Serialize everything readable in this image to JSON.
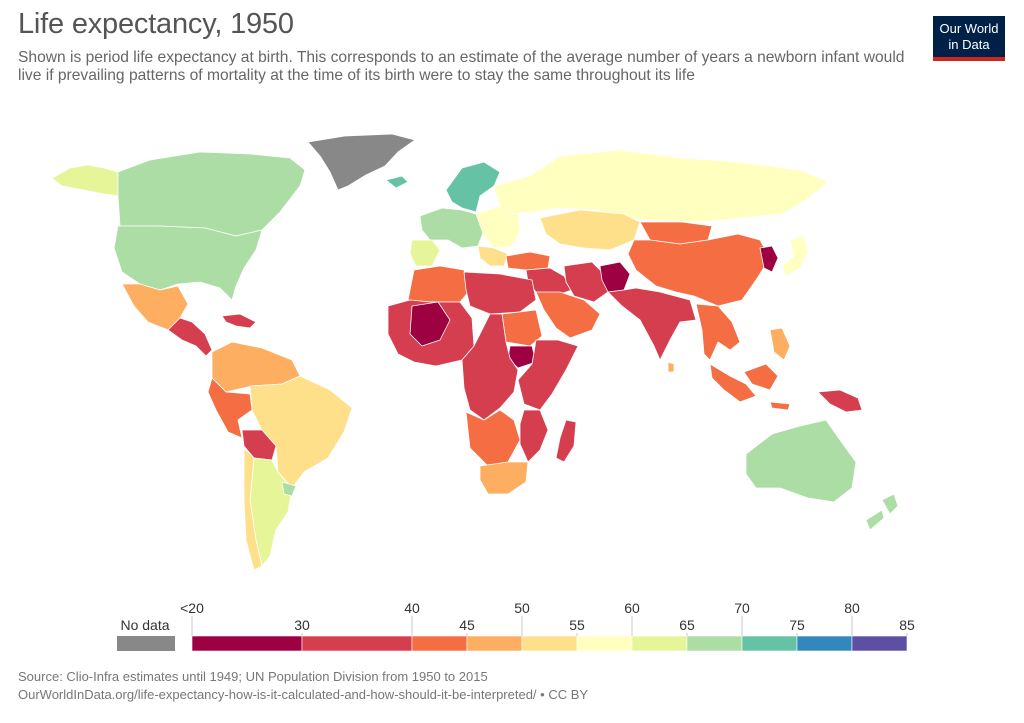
{
  "header": {
    "title": "Life expectancy, 1950",
    "subtitle": "Shown is period life expectancy at birth. This corresponds to an estimate of the average number of years a newborn infant would live if prevailing patterns of mortality at the time of its birth were to stay the same throughout its life",
    "logo_line1": "Our World",
    "logo_line2": "in Data"
  },
  "colors": {
    "brand_navy": "#002147",
    "brand_red": "#ce261e",
    "no_data": "#888888"
  },
  "legend": {
    "no_data_label": "No data",
    "bins": [
      {
        "from": 0,
        "to": 30,
        "color": "#9e0142"
      },
      {
        "from": 30,
        "to": 40,
        "color": "#d53e4f"
      },
      {
        "from": 40,
        "to": 45,
        "color": "#f46d43"
      },
      {
        "from": 45,
        "to": 50,
        "color": "#fdae61"
      },
      {
        "from": 50,
        "to": 55,
        "color": "#fee08b"
      },
      {
        "from": 55,
        "to": 60,
        "color": "#ffffbf"
      },
      {
        "from": 60,
        "to": 65,
        "color": "#e6f598"
      },
      {
        "from": 65,
        "to": 70,
        "color": "#abdda4"
      },
      {
        "from": 70,
        "to": 75,
        "color": "#66c2a5"
      },
      {
        "from": 75,
        "to": 80,
        "color": "#3288bd"
      },
      {
        "from": 80,
        "to": 85,
        "color": "#5e4fa2"
      }
    ],
    "ticks_top": [
      "<20",
      "40",
      "50",
      "60",
      "70",
      "80"
    ],
    "ticks_bottom": [
      "30",
      "45",
      "55",
      "65",
      "75",
      "85"
    ]
  },
  "regions": [
    {
      "name": "greenland",
      "bin": -1
    },
    {
      "name": "alaska",
      "bin": 6
    },
    {
      "name": "canada",
      "bin": 7
    },
    {
      "name": "usa",
      "bin": 7
    },
    {
      "name": "mexico",
      "bin": 3
    },
    {
      "name": "central-america",
      "bin": 1
    },
    {
      "name": "caribbean",
      "bin": 1
    },
    {
      "name": "northern-south-america",
      "bin": 3
    },
    {
      "name": "brazil",
      "bin": 4
    },
    {
      "name": "peru",
      "bin": 2
    },
    {
      "name": "bolivia",
      "bin": 1
    },
    {
      "name": "argentina",
      "bin": 6
    },
    {
      "name": "chile",
      "bin": 4
    },
    {
      "name": "uruguay",
      "bin": 7
    },
    {
      "name": "iceland",
      "bin": 8
    },
    {
      "name": "scandinavia",
      "bin": 8
    },
    {
      "name": "western-europe",
      "bin": 7
    },
    {
      "name": "eastern-europe",
      "bin": 5
    },
    {
      "name": "iberia",
      "bin": 6
    },
    {
      "name": "balkans",
      "bin": 4
    },
    {
      "name": "russia",
      "bin": 5
    },
    {
      "name": "kazakhstan",
      "bin": 4
    },
    {
      "name": "mongolia",
      "bin": 2
    },
    {
      "name": "china",
      "bin": 2
    },
    {
      "name": "korea",
      "bin": 0
    },
    {
      "name": "japan",
      "bin": 5
    },
    {
      "name": "turkey",
      "bin": 2
    },
    {
      "name": "middle-east",
      "bin": 1
    },
    {
      "name": "arabia",
      "bin": 2
    },
    {
      "name": "iran",
      "bin": 1
    },
    {
      "name": "afghanistan",
      "bin": 0
    },
    {
      "name": "south-asia",
      "bin": 1
    },
    {
      "name": "sri-lanka",
      "bin": 3
    },
    {
      "name": "mainland-southeast-asia",
      "bin": 2
    },
    {
      "name": "philippines",
      "bin": 3
    },
    {
      "name": "indonesia",
      "bin": 2
    },
    {
      "name": "new-guinea",
      "bin": 1
    },
    {
      "name": "australia",
      "bin": 7
    },
    {
      "name": "new-zealand",
      "bin": 7
    },
    {
      "name": "north-africa-west",
      "bin": 2
    },
    {
      "name": "north-africa-east",
      "bin": 1
    },
    {
      "name": "west-africa",
      "bin": 1
    },
    {
      "name": "mali",
      "bin": 0
    },
    {
      "name": "sudan",
      "bin": 2
    },
    {
      "name": "south-sudan",
      "bin": 0
    },
    {
      "name": "central-africa",
      "bin": 1
    },
    {
      "name": "east-africa",
      "bin": 1
    },
    {
      "name": "southern-africa-west",
      "bin": 2
    },
    {
      "name": "mozambique",
      "bin": 1
    },
    {
      "name": "south-africa",
      "bin": 3
    },
    {
      "name": "madagascar",
      "bin": 1
    }
  ],
  "footer": {
    "source": "Source: Clio-Infra estimates until 1949; UN Population Division from 1950 to 2015",
    "link": "OurWorldInData.org/life-expectancy-how-is-it-calculated-and-how-should-it-be-interpreted/ • CC BY"
  }
}
